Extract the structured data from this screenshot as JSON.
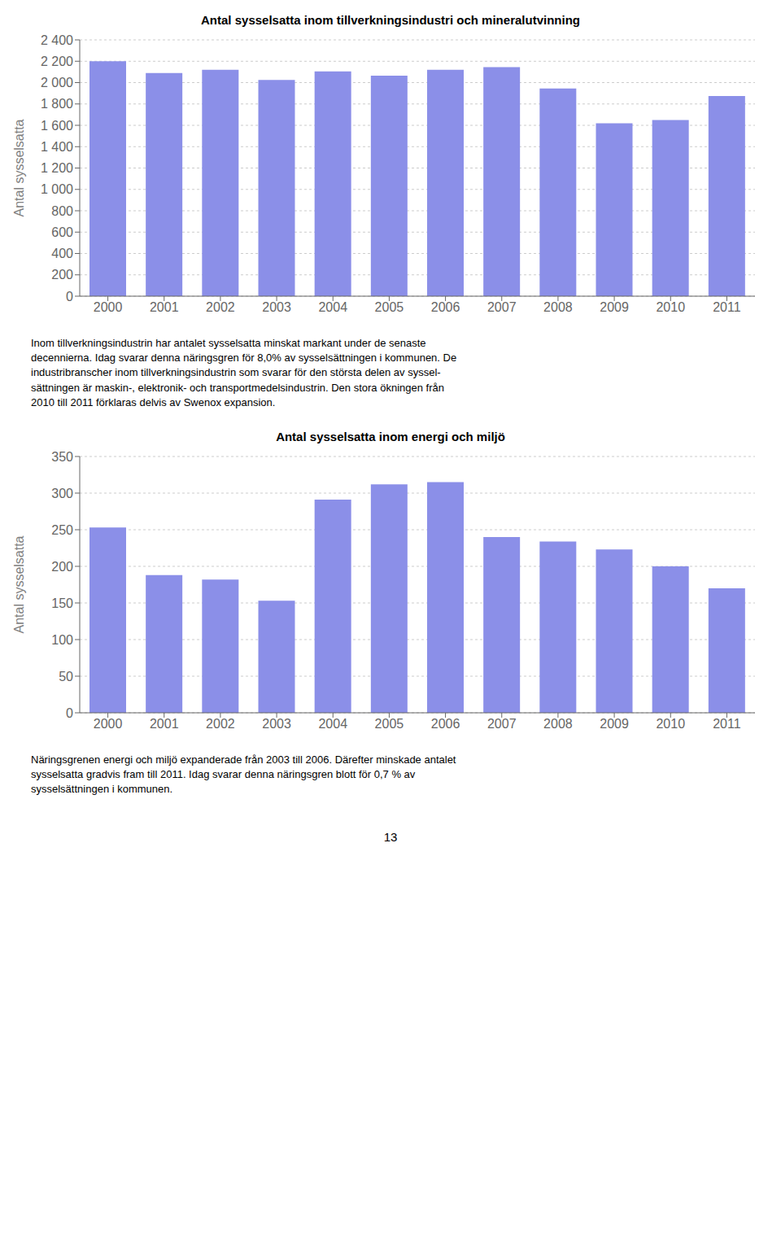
{
  "chart_data": [
    {
      "type": "bar",
      "title": "Antal sysselsatta inom tillverkningsindustri och mineralutvinning",
      "categories": [
        "2000",
        "2001",
        "2002",
        "2003",
        "2004",
        "2005",
        "2006",
        "2007",
        "2008",
        "2009",
        "2010",
        "2011"
      ],
      "values": [
        2200,
        2090,
        2120,
        2025,
        2105,
        2065,
        2120,
        2145,
        1945,
        1620,
        1650,
        1875
      ],
      "ylabel": "Antal sysselsatta",
      "ylim": [
        0,
        2400
      ],
      "yticks": [
        0,
        200,
        400,
        600,
        800,
        {
          "value": 1000,
          "label": "1 000"
        },
        {
          "value": 1200,
          "label": "1 200"
        },
        {
          "value": 1400,
          "label": "1 400"
        },
        {
          "value": 1600,
          "label": "1 600"
        },
        {
          "value": 1800,
          "label": "1 800"
        },
        {
          "value": 2000,
          "label": "2 000"
        },
        {
          "value": 2200,
          "label": "2 200"
        },
        {
          "value": 2400,
          "label": "2 400"
        }
      ],
      "grid": true,
      "color": "#8B8FE8",
      "annotations": [
        "Inom tillverkningsindustrin har antalet sysselsatta minskat markant under de senaste",
        "decennierna. Idag svarar denna näringsgren för 8,0% av sysselsättningen i kommunen. De",
        "industribranscher inom tillverkningsindustrin som svarar för den största delen av syssel-",
        "sättningen är maskin-, elektronik- och transportmedelsindustrin. Den stora ökningen från",
        "2010 till 2011 förklaras delvis av Swenox expansion."
      ]
    },
    {
      "type": "bar",
      "title": "Antal sysselsatta inom energi och miljö",
      "categories": [
        "2000",
        "2001",
        "2002",
        "2003",
        "2004",
        "2005",
        "2006",
        "2007",
        "2008",
        "2009",
        "2010",
        "2011"
      ],
      "values": [
        253,
        188,
        182,
        153,
        291,
        312,
        315,
        240,
        234,
        223,
        200,
        170
      ],
      "ylabel": "Antal sysselsatta",
      "ylim": [
        0,
        350
      ],
      "yticks": [
        0,
        50,
        100,
        150,
        200,
        250,
        300,
        350
      ],
      "grid": true,
      "color": "#8B8FE8",
      "annotations": [
        "Näringsgrenen energi och miljö expanderade från 2003 till 2006. Därefter minskade antalet",
        "sysselsatta gradvis fram till 2011. Idag svarar denna näringsgren blott för 0,7 % av",
        "sysselsättningen i kommunen.",
        "13"
      ]
    }
  ]
}
